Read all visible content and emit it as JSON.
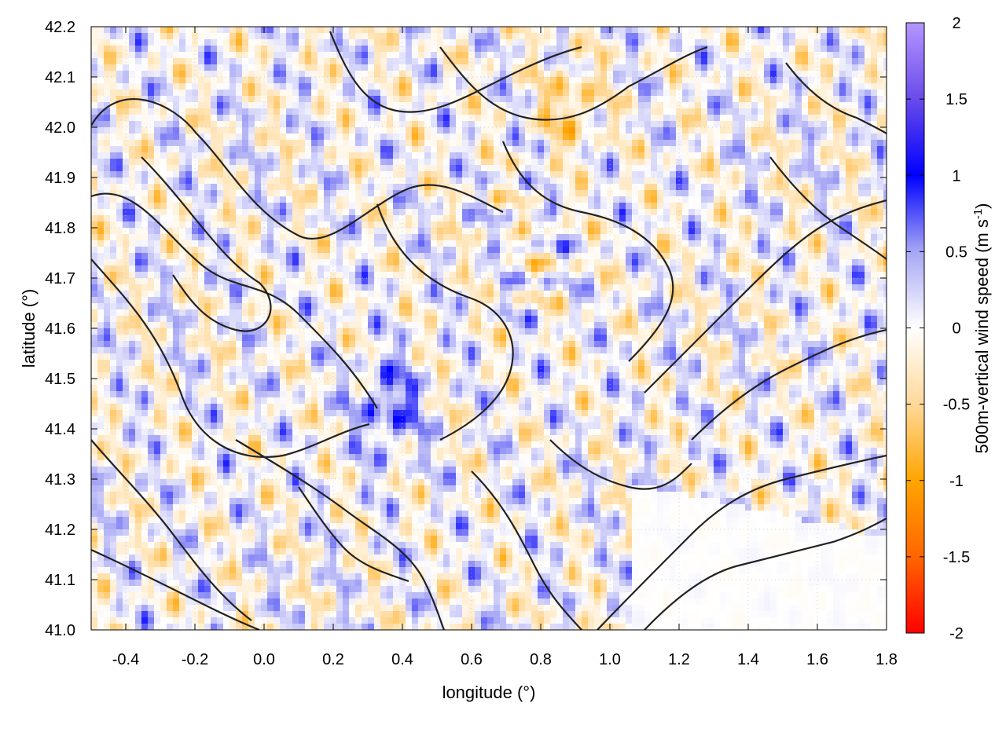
{
  "chart_data": {
    "type": "heatmap",
    "xlabel": "longitude (°)",
    "ylabel": "latitude (°)",
    "colorbar_label_main": "500m-vertical wind speed (m s",
    "colorbar_label_sup": "-1",
    "colorbar_label_close": ")",
    "xlim": [
      -0.5,
      1.8
    ],
    "ylim": [
      41.0,
      42.2
    ],
    "x_ticks": [
      -0.4,
      -0.2,
      0.0,
      0.2,
      0.4,
      0.6,
      0.8,
      1.0,
      1.2,
      1.4,
      1.6,
      1.8
    ],
    "x_tick_labels": [
      "-0.4",
      "-0.2",
      "0.0",
      "0.2",
      "0.4",
      "0.6",
      "0.8",
      "1.0",
      "1.2",
      "1.4",
      "1.6",
      "1.8"
    ],
    "y_ticks": [
      41.0,
      41.1,
      41.2,
      41.3,
      41.4,
      41.5,
      41.6,
      41.7,
      41.8,
      41.9,
      42.0,
      42.1,
      42.2
    ],
    "y_tick_labels": [
      "41.0",
      "41.1",
      "41.2",
      "41.3",
      "41.4",
      "41.5",
      "41.6",
      "41.7",
      "41.8",
      "41.9",
      "42.0",
      "42.1",
      "42.2"
    ],
    "colorbar_range": [
      -2,
      2
    ],
    "colorbar_ticks": [
      -2,
      -1.5,
      -1,
      -0.5,
      0,
      0.5,
      1,
      1.5,
      2
    ],
    "colorbar_tick_labels": [
      "-2",
      "-1.5",
      "-1",
      "-0.5",
      "0",
      "0.5",
      "1",
      "1.5",
      "2"
    ],
    "colormap": [
      {
        "value": -2,
        "color": "#ff0000"
      },
      {
        "value": -1.5,
        "color": "#ff6600"
      },
      {
        "value": -1,
        "color": "#ffa500"
      },
      {
        "value": -0.5,
        "color": "#ffd99a"
      },
      {
        "value": 0,
        "color": "#ffffff"
      },
      {
        "value": 0.5,
        "color": "#a6a6f5"
      },
      {
        "value": 1,
        "color": "#0000ff"
      },
      {
        "value": 1.5,
        "color": "#6a4bea"
      },
      {
        "value": 2,
        "color": "#b496ff"
      }
    ],
    "grid": true,
    "contour_color": "#222222"
  }
}
